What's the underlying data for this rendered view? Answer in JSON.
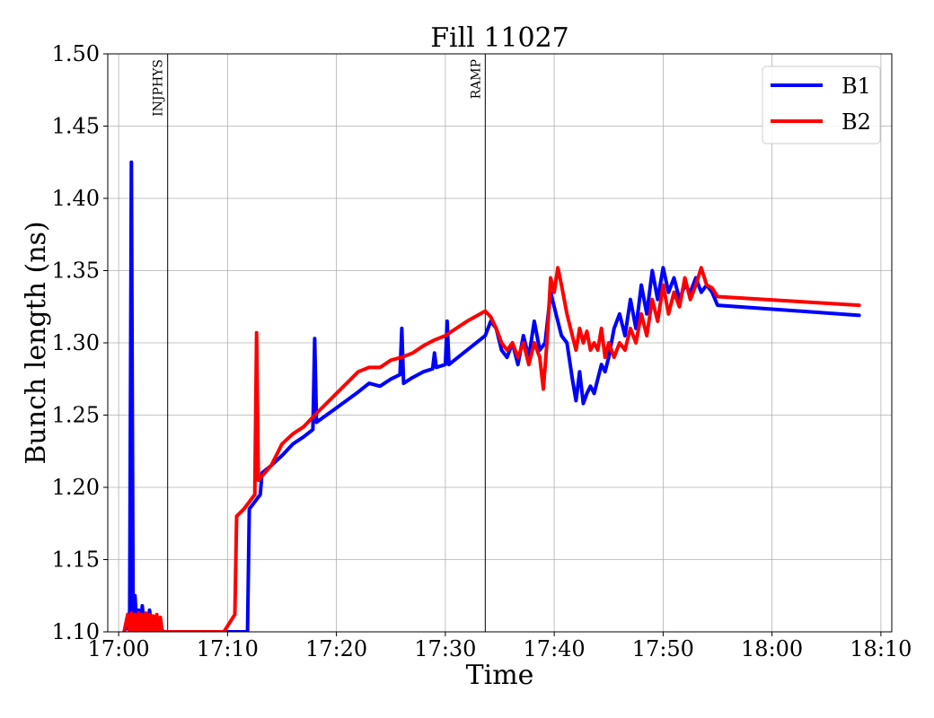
{
  "chart_data": {
    "type": "line",
    "title": "Fill 11027",
    "xlabel": "Time",
    "ylabel": "Bunch length (ns)",
    "xlim": [
      "16:59:00",
      "18:11:00"
    ],
    "ylim": [
      1.1,
      1.5
    ],
    "x_ticks": [
      "17:00",
      "17:10",
      "17:20",
      "17:30",
      "17:40",
      "17:50",
      "18:00",
      "18:10"
    ],
    "y_ticks": [
      "1.10",
      "1.15",
      "1.20",
      "1.25",
      "1.30",
      "1.35",
      "1.40",
      "1.45",
      "1.50"
    ],
    "grid": true,
    "legend_position": "top-right",
    "markers": [
      {
        "label": "INJPHYS",
        "time": "17:04:30"
      },
      {
        "label": "RAMP",
        "time": "17:33:40"
      }
    ],
    "series": [
      {
        "name": "B1",
        "color": "#0000ff",
        "points": [
          [
            "17:00:30",
            1.1
          ],
          [
            "17:00:50",
            1.105
          ],
          [
            "17:01:00",
            1.1
          ],
          [
            "17:01:10",
            1.425
          ],
          [
            "17:01:20",
            1.1
          ],
          [
            "17:01:30",
            1.125
          ],
          [
            "17:01:40",
            1.105
          ],
          [
            "17:01:50",
            1.115
          ],
          [
            "17:02:00",
            1.1
          ],
          [
            "17:02:10",
            1.118
          ],
          [
            "17:02:20",
            1.105
          ],
          [
            "17:02:30",
            1.112
          ],
          [
            "17:02:40",
            1.1
          ],
          [
            "17:02:50",
            1.115
          ],
          [
            "17:03:00",
            1.105
          ],
          [
            "17:03:10",
            1.11
          ],
          [
            "17:03:20",
            1.1
          ],
          [
            "17:03:30",
            1.108
          ],
          [
            "17:03:50",
            1.102
          ],
          [
            "17:04:10",
            1.1
          ],
          [
            "17:11:50",
            1.1
          ],
          [
            "17:12:00",
            1.185
          ],
          [
            "17:13:00",
            1.195
          ],
          [
            "17:13:10",
            1.21
          ],
          [
            "17:14:00",
            1.215
          ],
          [
            "17:15:00",
            1.222
          ],
          [
            "17:16:00",
            1.23
          ],
          [
            "17:17:00",
            1.235
          ],
          [
            "17:17:50",
            1.24
          ],
          [
            "17:18:00",
            1.303
          ],
          [
            "17:18:10",
            1.245
          ],
          [
            "17:20:00",
            1.255
          ],
          [
            "17:22:00",
            1.266
          ],
          [
            "17:23:00",
            1.272
          ],
          [
            "17:24:00",
            1.27
          ],
          [
            "17:25:00",
            1.275
          ],
          [
            "17:25:50",
            1.278
          ],
          [
            "17:26:00",
            1.31
          ],
          [
            "17:26:10",
            1.272
          ],
          [
            "17:27:00",
            1.276
          ],
          [
            "17:28:00",
            1.28
          ],
          [
            "17:28:50",
            1.282
          ],
          [
            "17:29:00",
            1.293
          ],
          [
            "17:29:10",
            1.283
          ],
          [
            "17:30:00",
            1.285
          ],
          [
            "17:30:10",
            1.315
          ],
          [
            "17:30:20",
            1.285
          ],
          [
            "17:32:00",
            1.295
          ],
          [
            "17:33:40",
            1.305
          ],
          [
            "17:34:10",
            1.315
          ],
          [
            "17:34:40",
            1.31
          ],
          [
            "17:35:10",
            1.295
          ],
          [
            "17:35:40",
            1.29
          ],
          [
            "17:36:10",
            1.3
          ],
          [
            "17:36:40",
            1.285
          ],
          [
            "17:37:10",
            1.305
          ],
          [
            "17:37:40",
            1.29
          ],
          [
            "17:38:10",
            1.315
          ],
          [
            "17:38:40",
            1.295
          ],
          [
            "17:39:10",
            1.3
          ],
          [
            "17:39:40",
            1.335
          ],
          [
            "17:40:10",
            1.32
          ],
          [
            "17:40:40",
            1.305
          ],
          [
            "17:41:10",
            1.3
          ],
          [
            "17:41:40",
            1.275
          ],
          [
            "17:42:00",
            1.26
          ],
          [
            "17:42:20",
            1.28
          ],
          [
            "17:42:40",
            1.258
          ],
          [
            "17:43:00",
            1.265
          ],
          [
            "17:43:20",
            1.27
          ],
          [
            "17:43:40",
            1.265
          ],
          [
            "17:44:00",
            1.275
          ],
          [
            "17:44:20",
            1.285
          ],
          [
            "17:44:40",
            1.28
          ],
          [
            "17:45:00",
            1.29
          ],
          [
            "17:45:30",
            1.31
          ],
          [
            "17:46:00",
            1.32
          ],
          [
            "17:46:30",
            1.305
          ],
          [
            "17:47:00",
            1.33
          ],
          [
            "17:47:30",
            1.31
          ],
          [
            "17:48:00",
            1.34
          ],
          [
            "17:48:30",
            1.32
          ],
          [
            "17:49:00",
            1.35
          ],
          [
            "17:49:30",
            1.33
          ],
          [
            "17:50:00",
            1.352
          ],
          [
            "17:50:30",
            1.335
          ],
          [
            "17:51:00",
            1.345
          ],
          [
            "17:51:30",
            1.33
          ],
          [
            "17:52:00",
            1.34
          ],
          [
            "17:52:30",
            1.335
          ],
          [
            "17:53:00",
            1.345
          ],
          [
            "17:53:30",
            1.335
          ],
          [
            "17:54:00",
            1.34
          ],
          [
            "17:54:30",
            1.335
          ],
          [
            "17:55:00",
            1.326
          ],
          [
            "18:08:00",
            1.319
          ]
        ]
      },
      {
        "name": "B2",
        "color": "#ff0000",
        "points": [
          [
            "17:00:30",
            1.1
          ],
          [
            "17:00:50",
            1.112
          ],
          [
            "17:01:00",
            1.1
          ],
          [
            "17:01:10",
            1.113
          ],
          [
            "17:01:20",
            1.1
          ],
          [
            "17:01:30",
            1.112
          ],
          [
            "17:01:40",
            1.1
          ],
          [
            "17:01:50",
            1.113
          ],
          [
            "17:02:00",
            1.1
          ],
          [
            "17:02:10",
            1.112
          ],
          [
            "17:02:20",
            1.1
          ],
          [
            "17:02:30",
            1.113
          ],
          [
            "17:02:40",
            1.1
          ],
          [
            "17:02:50",
            1.112
          ],
          [
            "17:03:00",
            1.1
          ],
          [
            "17:03:10",
            1.111
          ],
          [
            "17:03:20",
            1.1
          ],
          [
            "17:03:30",
            1.112
          ],
          [
            "17:03:40",
            1.1
          ],
          [
            "17:03:50",
            1.11
          ],
          [
            "17:04:00",
            1.1
          ],
          [
            "17:09:40",
            1.1
          ],
          [
            "17:10:40",
            1.112
          ],
          [
            "17:10:50",
            1.18
          ],
          [
            "17:11:30",
            1.185
          ],
          [
            "17:12:30",
            1.195
          ],
          [
            "17:12:40",
            1.307
          ],
          [
            "17:12:50",
            1.205
          ],
          [
            "17:14:00",
            1.215
          ],
          [
            "17:15:00",
            1.23
          ],
          [
            "17:16:00",
            1.237
          ],
          [
            "17:17:00",
            1.242
          ],
          [
            "17:18:00",
            1.25
          ],
          [
            "17:20:00",
            1.265
          ],
          [
            "17:22:00",
            1.28
          ],
          [
            "17:23:00",
            1.283
          ],
          [
            "17:24:00",
            1.283
          ],
          [
            "17:25:00",
            1.288
          ],
          [
            "17:26:00",
            1.29
          ],
          [
            "17:27:00",
            1.293
          ],
          [
            "17:28:00",
            1.298
          ],
          [
            "17:29:00",
            1.302
          ],
          [
            "17:30:00",
            1.305
          ],
          [
            "17:31:00",
            1.31
          ],
          [
            "17:32:00",
            1.315
          ],
          [
            "17:33:40",
            1.322
          ],
          [
            "17:34:10",
            1.318
          ],
          [
            "17:34:40",
            1.31
          ],
          [
            "17:35:10",
            1.3
          ],
          [
            "17:35:40",
            1.295
          ],
          [
            "17:36:10",
            1.3
          ],
          [
            "17:36:40",
            1.29
          ],
          [
            "17:37:10",
            1.3
          ],
          [
            "17:37:40",
            1.285
          ],
          [
            "17:38:10",
            1.3
          ],
          [
            "17:38:40",
            1.29
          ],
          [
            "17:39:00",
            1.268
          ],
          [
            "17:39:20",
            1.3
          ],
          [
            "17:39:40",
            1.345
          ],
          [
            "17:40:00",
            1.335
          ],
          [
            "17:40:20",
            1.352
          ],
          [
            "17:40:40",
            1.34
          ],
          [
            "17:41:10",
            1.32
          ],
          [
            "17:41:40",
            1.305
          ],
          [
            "17:42:00",
            1.295
          ],
          [
            "17:42:20",
            1.31
          ],
          [
            "17:42:40",
            1.3
          ],
          [
            "17:43:00",
            1.308
          ],
          [
            "17:43:20",
            1.295
          ],
          [
            "17:43:40",
            1.3
          ],
          [
            "17:44:00",
            1.295
          ],
          [
            "17:44:20",
            1.31
          ],
          [
            "17:44:40",
            1.29
          ],
          [
            "17:45:00",
            1.3
          ],
          [
            "17:45:30",
            1.29
          ],
          [
            "17:46:00",
            1.3
          ],
          [
            "17:46:30",
            1.295
          ],
          [
            "17:47:00",
            1.31
          ],
          [
            "17:47:30",
            1.3
          ],
          [
            "17:48:00",
            1.32
          ],
          [
            "17:48:30",
            1.305
          ],
          [
            "17:49:00",
            1.33
          ],
          [
            "17:49:30",
            1.315
          ],
          [
            "17:50:00",
            1.34
          ],
          [
            "17:50:30",
            1.32
          ],
          [
            "17:51:00",
            1.335
          ],
          [
            "17:51:30",
            1.325
          ],
          [
            "17:52:00",
            1.345
          ],
          [
            "17:52:30",
            1.33
          ],
          [
            "17:53:00",
            1.34
          ],
          [
            "17:53:30",
            1.352
          ],
          [
            "17:54:00",
            1.34
          ],
          [
            "17:54:30",
            1.338
          ],
          [
            "17:55:00",
            1.332
          ],
          [
            "18:08:00",
            1.326
          ]
        ]
      }
    ]
  }
}
